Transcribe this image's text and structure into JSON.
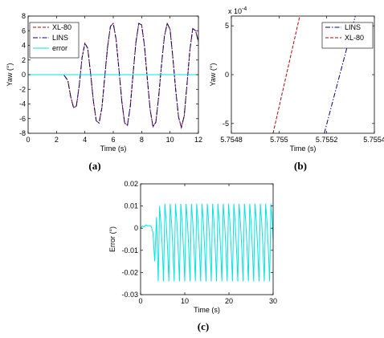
{
  "colors": {
    "xl80": "#c00000",
    "lins": "#00008b",
    "error": "#00e5e5"
  },
  "chart_data": [
    {
      "id": "a",
      "caption": "(a)",
      "type": "line",
      "xlabel": "Time (s)",
      "ylabel": "Yaw (°)",
      "xlim": [
        0,
        12
      ],
      "ylim": [
        -8,
        8
      ],
      "xticks": [
        0,
        2,
        4,
        6,
        8,
        10,
        12
      ],
      "yticks": [
        -8,
        -6,
        -4,
        -2,
        0,
        2,
        4,
        6,
        8
      ],
      "legend_position": "top-left",
      "series": [
        {
          "name": "XL-80",
          "color": "#c00000",
          "style": "dashed",
          "x": [
            0,
            2.5,
            2.8,
            3.0,
            3.2,
            3.4,
            3.6,
            3.8,
            4.0,
            4.2,
            4.4,
            4.6,
            4.8,
            5.0,
            5.2,
            5.4,
            5.6,
            5.8,
            6.0,
            6.2,
            6.4,
            6.6,
            6.8,
            7.0,
            7.2,
            7.4,
            7.6,
            7.8,
            8.0,
            8.2,
            8.4,
            8.6,
            8.8,
            9.0,
            9.2,
            9.4,
            9.6,
            9.8,
            10.0,
            10.2,
            10.4,
            10.6,
            10.8,
            11.0,
            11.2,
            11.4,
            11.6,
            11.8,
            12.0
          ],
          "y": [
            0,
            0,
            -0.8,
            -3.0,
            -4.5,
            -4.3,
            -1.5,
            2.3,
            4.3,
            3.6,
            0.2,
            -3.6,
            -6.3,
            -6.6,
            -4.5,
            -0.3,
            3.8,
            6.6,
            7.0,
            4.8,
            0.7,
            -3.6,
            -6.6,
            -6.9,
            -4.3,
            0.2,
            4.5,
            7.0,
            6.8,
            3.9,
            -0.6,
            -4.8,
            -7.1,
            -6.5,
            -3.0,
            1.4,
            5.2,
            7.0,
            6.2,
            2.3,
            -2.1,
            -5.8,
            -7.2,
            -5.6,
            -1.2,
            3.4,
            6.3,
            6.0,
            4.5
          ]
        },
        {
          "name": "LINS",
          "color": "#00008b",
          "style": "dashdot",
          "x": [
            0,
            2.5,
            2.8,
            3.0,
            3.2,
            3.4,
            3.6,
            3.8,
            4.0,
            4.2,
            4.4,
            4.6,
            4.8,
            5.0,
            5.2,
            5.4,
            5.6,
            5.8,
            6.0,
            6.2,
            6.4,
            6.6,
            6.8,
            7.0,
            7.2,
            7.4,
            7.6,
            7.8,
            8.0,
            8.2,
            8.4,
            8.6,
            8.8,
            9.0,
            9.2,
            9.4,
            9.6,
            9.8,
            10.0,
            10.2,
            10.4,
            10.6,
            10.8,
            11.0,
            11.2,
            11.4,
            11.6,
            11.8,
            12.0
          ],
          "y": [
            0,
            0,
            -0.8,
            -3.0,
            -4.5,
            -4.3,
            -1.5,
            2.3,
            4.3,
            3.6,
            0.2,
            -3.6,
            -6.3,
            -6.6,
            -4.5,
            -0.3,
            3.8,
            6.6,
            7.0,
            4.8,
            0.7,
            -3.6,
            -6.6,
            -6.9,
            -4.3,
            0.2,
            4.5,
            7.0,
            6.8,
            3.9,
            -0.6,
            -4.8,
            -7.1,
            -6.5,
            -3.0,
            1.4,
            5.2,
            7.0,
            6.2,
            2.3,
            -2.1,
            -5.8,
            -7.2,
            -5.6,
            -1.2,
            3.4,
            6.3,
            6.0,
            4.5
          ]
        },
        {
          "name": "error",
          "color": "#00e5e5",
          "style": "solid",
          "x": [
            0,
            12
          ],
          "y": [
            0,
            0
          ]
        }
      ]
    },
    {
      "id": "b",
      "caption": "(b)",
      "type": "line",
      "xlabel": "Time (s)",
      "ylabel": "Yaw (°)",
      "exponent_label": "x 10",
      "exponent_power": "-4",
      "xlim": [
        5.7548,
        5.7554
      ],
      "ylim": [
        -6,
        6
      ],
      "xticks": [
        5.7548,
        5.755,
        5.7552,
        5.7554
      ],
      "xtick_labels": [
        "5.7548",
        "5.755",
        "5.7552",
        "5.7554"
      ],
      "yticks": [
        -5,
        0,
        5
      ],
      "legend_position": "top-right",
      "series": [
        {
          "name": "LINS",
          "color": "#00008b",
          "style": "dashdot",
          "x": [
            5.75519,
            5.75532
          ],
          "y": [
            -6,
            6
          ]
        },
        {
          "name": "XL-80",
          "color": "#c00000",
          "style": "dashed",
          "x": [
            5.754975,
            5.755087
          ],
          "y": [
            -6,
            6
          ]
        }
      ]
    },
    {
      "id": "c",
      "caption": "(c)",
      "type": "line",
      "xlabel": "Time (s)",
      "ylabel": "Error (°)",
      "xlim": [
        0,
        30
      ],
      "ylim": [
        -0.03,
        0.02
      ],
      "xticks": [
        0,
        10,
        20,
        30
      ],
      "yticks": [
        -0.03,
        -0.02,
        -0.01,
        0,
        0.01,
        0.02
      ],
      "ytick_labels": [
        "-0.03",
        "-0.02",
        "-0.01",
        "0",
        "0.01",
        "0.02"
      ],
      "series": [
        {
          "name": "error",
          "color": "#00e5e5",
          "style": "solid",
          "x": [
            0,
            0.4,
            0.8,
            1.2,
            1.6,
            2.0,
            2.4,
            2.8,
            3.2,
            3.6,
            4.0,
            4.3,
            4.6,
            4.9,
            5.2,
            5.5,
            5.8,
            6.1,
            6.4,
            6.7,
            7.0,
            7.3,
            7.6,
            7.9,
            8.2,
            8.5,
            8.8,
            9.1,
            9.4,
            9.7,
            10.0,
            10.3,
            10.6,
            10.9,
            11.2,
            11.5,
            11.8,
            12.1,
            12.4,
            12.7,
            13.0,
            13.3,
            13.6,
            13.9,
            14.2,
            14.5,
            14.8,
            15.1,
            15.4,
            15.7,
            16.0,
            16.3,
            16.6,
            16.9,
            17.2,
            17.5,
            17.8,
            18.1,
            18.4,
            18.7,
            19.0,
            19.3,
            19.6,
            19.9,
            20.2,
            20.5,
            20.8,
            21.1,
            21.4,
            21.7,
            22.0,
            22.3,
            22.6,
            22.9,
            23.2,
            23.5,
            23.8,
            24.1,
            24.4,
            24.7,
            25.0,
            25.3,
            25.6,
            25.9,
            26.2,
            26.5,
            26.8,
            27.1,
            27.4,
            27.7,
            28.0,
            28.3,
            28.6,
            28.9,
            29.2,
            29.5,
            29.8,
            30.0
          ],
          "y": [
            0.0,
            0.001,
            0.0005,
            0.0015,
            0.001,
            0.0012,
            0.0008,
            -0.002,
            -0.015,
            0.005,
            -0.024,
            0.01,
            0.002,
            -0.008,
            -0.024,
            0.011,
            0.003,
            -0.009,
            -0.024,
            0.011,
            0.003,
            -0.009,
            -0.024,
            0.011,
            0.003,
            -0.009,
            -0.024,
            0.011,
            0.003,
            -0.009,
            -0.024,
            0.011,
            0.003,
            -0.009,
            -0.024,
            0.011,
            0.003,
            -0.009,
            -0.024,
            0.011,
            0.003,
            -0.009,
            -0.024,
            0.011,
            0.003,
            -0.009,
            -0.024,
            0.011,
            0.003,
            -0.009,
            -0.024,
            0.011,
            0.003,
            -0.009,
            -0.024,
            0.011,
            0.003,
            -0.009,
            -0.024,
            0.011,
            0.003,
            -0.009,
            -0.024,
            0.011,
            0.003,
            -0.009,
            -0.024,
            0.011,
            0.003,
            -0.009,
            -0.024,
            0.011,
            0.003,
            -0.009,
            -0.024,
            0.011,
            0.003,
            -0.009,
            -0.024,
            0.011,
            0.003,
            -0.009,
            -0.024,
            0.011,
            0.003,
            -0.009,
            -0.024,
            0.011,
            0.003,
            -0.009,
            -0.024,
            0.011,
            0.003,
            -0.009,
            -0.024,
            0.011,
            0.003,
            -0.005
          ]
        }
      ]
    }
  ]
}
